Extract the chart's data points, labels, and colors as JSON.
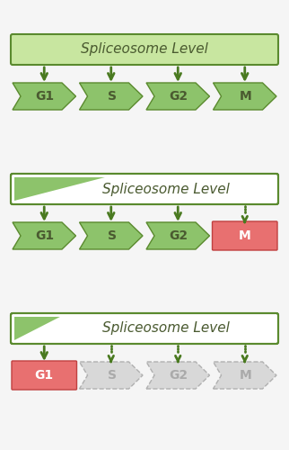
{
  "bg_color": "#f5f5f5",
  "panel_bg": "#ffffff",
  "green_arrow_fill": "#8dc36b",
  "green_arrow_edge": "#5a8a2e",
  "green_box_fill": "#c8e6a0",
  "green_box_edge": "#5a8a2e",
  "red_box_fill": "#e87070",
  "red_box_edge": "#c04040",
  "gray_arrow_fill": "#d8d8d8",
  "gray_arrow_edge": "#b0b0b0",
  "dark_green_arrow": "#4a7a20",
  "text_color_dark": "#4a5a30",
  "text_color_white": "#ffffff",
  "text_color_gray": "#aaaaaa",
  "stages": [
    "G1",
    "S",
    "G2",
    "M"
  ],
  "panel_title": "Spliceosome Level",
  "title_fontsize": 11,
  "stage_fontsize": 10
}
